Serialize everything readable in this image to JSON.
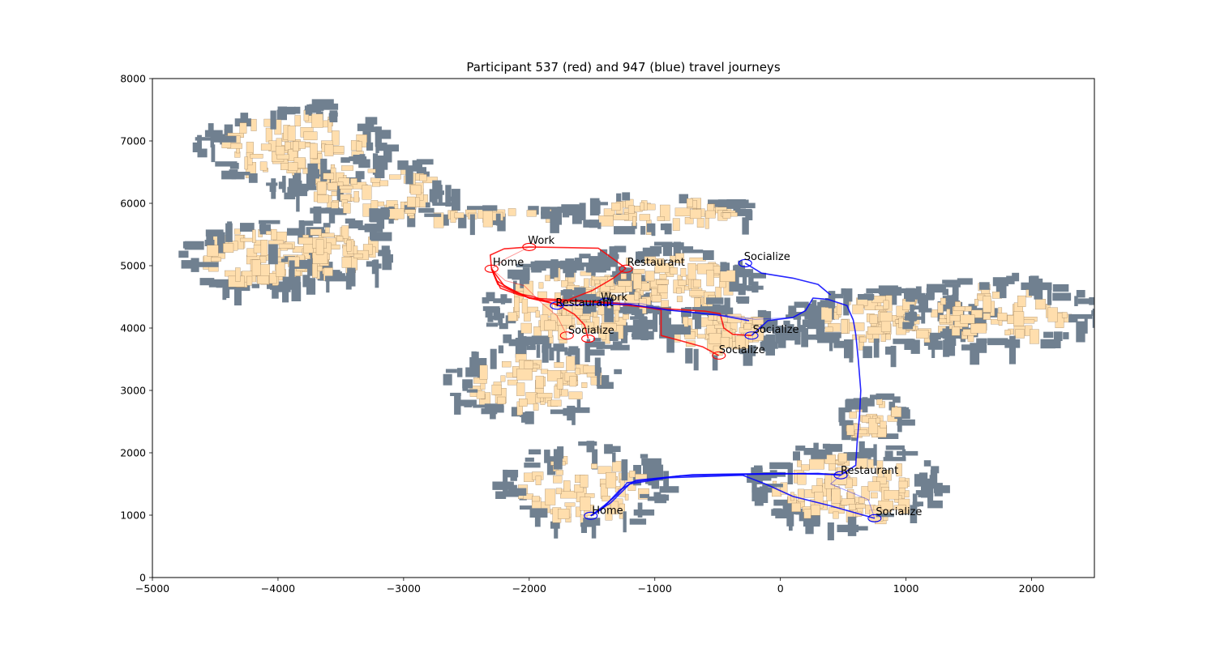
{
  "chart_data": {
    "type": "line",
    "title": "Participant 537 (red) and 947 (blue) travel journeys",
    "xlabel": "",
    "ylabel": "",
    "xlim": [
      -5000,
      2500
    ],
    "ylim": [
      0,
      8000
    ],
    "x_ticks": [
      -5000,
      -4000,
      -3000,
      -2000,
      -1000,
      0,
      1000,
      2000
    ],
    "x_tick_labels": [
      "−5000",
      "−4000",
      "−3000",
      "−2000",
      "−1000",
      "0",
      "1000",
      "2000"
    ],
    "y_ticks": [
      0,
      1000,
      2000,
      3000,
      4000,
      5000,
      6000,
      7000,
      8000
    ],
    "y_tick_labels": [
      "0",
      "1000",
      "2000",
      "3000",
      "4000",
      "5000",
      "6000",
      "7000",
      "8000"
    ],
    "grid": false,
    "colors": {
      "building_fill": "#ffdead",
      "building_edge": "#8b7355",
      "pub_fill": "#708090",
      "participant_537": "#ff0000",
      "participant_947": "#0000ff"
    },
    "places": [
      {
        "participant": "537",
        "label": "Work",
        "x": -2000,
        "y": 5300
      },
      {
        "participant": "537",
        "label": "Home",
        "x": -2300,
        "y": 4950
      },
      {
        "participant": "537",
        "label": "Restaurant",
        "x": -1230,
        "y": 4950
      },
      {
        "participant": "537",
        "label": "Socialize",
        "x": -1700,
        "y": 3880
      },
      {
        "participant": "537",
        "label": "Socialize",
        "x": -1530,
        "y": 3830
      },
      {
        "participant": "537",
        "label": "Socialize",
        "x": -490,
        "y": 3560
      },
      {
        "participant": "947",
        "label": "Work",
        "x": -1390,
        "y": 4420
      },
      {
        "participant": "947",
        "label": "Restaurant",
        "x": -1780,
        "y": 4360
      },
      {
        "participant": "947",
        "label": "Socialize",
        "x": -280,
        "y": 5040
      },
      {
        "participant": "947",
        "label": "Socialize",
        "x": -230,
        "y": 3880
      },
      {
        "participant": "947",
        "label": "Home",
        "x": -1510,
        "y": 990
      },
      {
        "participant": "947",
        "label": "Restaurant",
        "x": 480,
        "y": 1640
      },
      {
        "participant": "947",
        "label": "Socialize",
        "x": 750,
        "y": 950
      }
    ],
    "labels": [
      {
        "text": "Work",
        "x": -2010,
        "y": 5350
      },
      {
        "text": "Home",
        "x": -2290,
        "y": 5000
      },
      {
        "text": "Restaurant",
        "x": -1220,
        "y": 5000
      },
      {
        "text": "Socialize",
        "x": -290,
        "y": 5090
      },
      {
        "text": "Work",
        "x": -1430,
        "y": 4440
      },
      {
        "text": "Restaurant",
        "x": -1790,
        "y": 4350
      },
      {
        "text": "Socialize",
        "x": -1690,
        "y": 3910
      },
      {
        "text": "Socialize",
        "x": -220,
        "y": 3920
      },
      {
        "text": "Socialize",
        "x": -490,
        "y": 3600
      },
      {
        "text": "Restaurant",
        "x": 480,
        "y": 1660
      },
      {
        "text": "Home",
        "x": -1500,
        "y": 1020
      },
      {
        "text": "Socialize",
        "x": 760,
        "y": 1000
      }
    ],
    "series": [
      {
        "name": "537",
        "color": "#ff0000",
        "paths": [
          [
            [
              -2300,
              4950
            ],
            [
              -2310,
              5170
            ],
            [
              -2200,
              5270
            ],
            [
              -2000,
              5300
            ],
            [
              -1700,
              5290
            ],
            [
              -1450,
              5280
            ],
            [
              -1230,
              4960
            ]
          ],
          [
            [
              -2300,
              4950
            ],
            [
              -2260,
              4760
            ],
            [
              -2130,
              4600
            ],
            [
              -2000,
              4480
            ],
            [
              -1780,
              4380
            ],
            [
              -1640,
              4220
            ],
            [
              -1560,
              4050
            ],
            [
              -1530,
              3830
            ]
          ],
          [
            [
              -2300,
              4950
            ],
            [
              -2190,
              4760
            ],
            [
              -2040,
              4680
            ],
            [
              -1900,
              4400
            ],
            [
              -1780,
              4200
            ],
            [
              -1700,
              3880
            ]
          ],
          [
            [
              -2300,
              4950
            ],
            [
              -2230,
              4640
            ],
            [
              -2080,
              4530
            ],
            [
              -1900,
              4440
            ],
            [
              -1500,
              4430
            ],
            [
              -1200,
              4380
            ],
            [
              -950,
              4290
            ],
            [
              -950,
              3880
            ],
            [
              -800,
              3800
            ],
            [
              -620,
              3700
            ],
            [
              -490,
              3560
            ]
          ],
          [
            [
              -2300,
              4950
            ],
            [
              -2200,
              4680
            ],
            [
              -2000,
              4480
            ],
            [
              -1600,
              4440
            ],
            [
              -1000,
              4320
            ],
            [
              -600,
              4270
            ],
            [
              -480,
              4230
            ],
            [
              -450,
              4000
            ],
            [
              -380,
              3900
            ],
            [
              -230,
              3880
            ]
          ],
          [
            [
              -2000,
              5300
            ],
            [
              -2180,
              5120
            ],
            [
              -2300,
              4950
            ]
          ],
          [
            [
              -1230,
              4960
            ],
            [
              -1330,
              4800
            ],
            [
              -1500,
              4600
            ],
            [
              -1780,
              4380
            ]
          ],
          [
            [
              -2300,
              4950
            ],
            [
              -2250,
              4700
            ],
            [
              -2100,
              4560
            ],
            [
              -1960,
              4500
            ],
            [
              -1780,
              4370
            ]
          ]
        ]
      },
      {
        "name": "947",
        "color": "#0000ff",
        "paths": [
          [
            [
              -1510,
              990
            ],
            [
              -1400,
              1160
            ],
            [
              -1300,
              1330
            ],
            [
              -1220,
              1520
            ],
            [
              -1000,
              1580
            ],
            [
              -800,
              1630
            ],
            [
              -400,
              1650
            ],
            [
              0,
              1660
            ],
            [
              300,
              1670
            ],
            [
              480,
              1640
            ]
          ],
          [
            [
              480,
              1640
            ],
            [
              600,
              1800
            ],
            [
              610,
              2150
            ],
            [
              630,
              2600
            ],
            [
              640,
              3000
            ],
            [
              620,
              3500
            ],
            [
              600,
              3900
            ],
            [
              580,
              4130
            ],
            [
              530,
              4360
            ],
            [
              380,
              4460
            ],
            [
              260,
              4480
            ],
            [
              200,
              4280
            ],
            [
              100,
              4170
            ],
            [
              -100,
              4120
            ],
            [
              -230,
              3880
            ]
          ],
          [
            [
              -1390,
              4420
            ],
            [
              -1100,
              4390
            ],
            [
              -900,
              4290
            ],
            [
              -500,
              4220
            ],
            [
              -200,
              4140
            ],
            [
              100,
              4170
            ],
            [
              200,
              4280
            ]
          ],
          [
            [
              -1780,
              4360
            ],
            [
              -1500,
              4380
            ],
            [
              -1200,
              4380
            ],
            [
              -900,
              4290
            ],
            [
              -500,
              4210
            ],
            [
              -250,
              4120
            ]
          ],
          [
            [
              -280,
              5040
            ],
            [
              -150,
              4880
            ],
            [
              100,
              4800
            ],
            [
              300,
              4700
            ],
            [
              400,
              4530
            ]
          ],
          [
            [
              480,
              1640
            ],
            [
              400,
              1500
            ],
            [
              700,
              1250
            ],
            [
              750,
              950
            ]
          ],
          [
            [
              -1510,
              990
            ],
            [
              -1350,
              1200
            ],
            [
              -1200,
              1500
            ],
            [
              -900,
              1600
            ],
            [
              -300,
              1640
            ],
            [
              -120,
              1500
            ],
            [
              100,
              1300
            ],
            [
              400,
              1150
            ],
            [
              750,
              950
            ]
          ],
          [
            [
              -1510,
              990
            ],
            [
              -1420,
              1100
            ],
            [
              -1280,
              1400
            ],
            [
              -1150,
              1560
            ],
            [
              -700,
              1650
            ],
            [
              0,
              1670
            ],
            [
              480,
              1650
            ]
          ]
        ]
      }
    ]
  }
}
